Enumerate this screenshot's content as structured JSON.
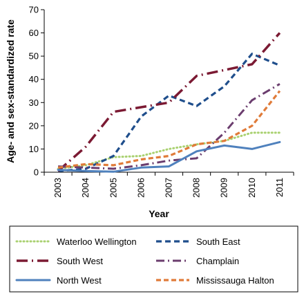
{
  "chart_data": {
    "type": "line",
    "title": "",
    "xlabel": "Year",
    "ylabel": "Age- and sex-standardized rate",
    "categories": [
      "2003",
      "2004",
      "2005",
      "2006",
      "2007",
      "2008",
      "2009",
      "2010",
      "2011"
    ],
    "ylim": [
      0,
      70
    ],
    "yticks": [
      0,
      10,
      20,
      30,
      40,
      50,
      60,
      70
    ],
    "grid": false,
    "legend_position": "bottom",
    "series": [
      {
        "name": "Waterloo Wellington",
        "values": [
          1.5,
          3,
          6.5,
          7,
          10,
          12,
          13.5,
          17,
          17
        ],
        "color": "#a9d170",
        "dash": "dotted"
      },
      {
        "name": "South East",
        "values": [
          0.5,
          1.5,
          7,
          24,
          33,
          28.5,
          37,
          51,
          46
        ],
        "color": "#1f4e8c",
        "dash": "dashed"
      },
      {
        "name": "South West",
        "values": [
          0.5,
          11,
          26,
          28,
          30,
          41.5,
          44,
          46.5,
          60
        ],
        "color": "#7b1a33",
        "dash": "dashdot"
      },
      {
        "name": "Champlain",
        "values": [
          2.5,
          2,
          1.5,
          3,
          5,
          6,
          17,
          31,
          38
        ],
        "color": "#6b3d6e",
        "dash": "dashdot-fine"
      },
      {
        "name": "North West",
        "values": [
          1,
          0.5,
          0.2,
          2,
          2.5,
          9,
          11.5,
          10,
          13
        ],
        "color": "#4f81bd",
        "dash": "solid"
      },
      {
        "name": "Mississauga Halton",
        "values": [
          2,
          3.5,
          3,
          5.5,
          7,
          12,
          13.5,
          20,
          35
        ],
        "color": "#e07b39",
        "dash": "dashed-orange"
      }
    ]
  }
}
